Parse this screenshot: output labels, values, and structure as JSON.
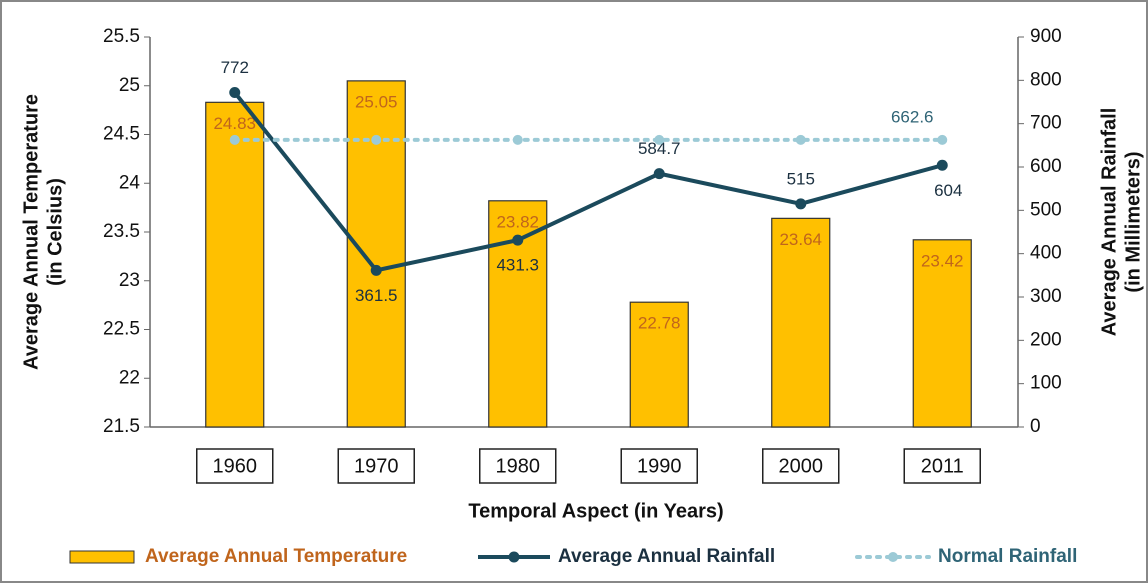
{
  "chart_data": {
    "type": "bar",
    "x_label": "Temporal Aspect (in Years)",
    "y_label": [
      "Average Annual Temperature",
      "(in Celsius)"
    ],
    "y2_label": [
      "Average Annual Rainfall",
      "(in Millimeters)"
    ],
    "categories": [
      "1960",
      "1970",
      "1980",
      "1990",
      "2000",
      "2011"
    ],
    "ylim": [
      21.5,
      25.5
    ],
    "yticks": [
      21.5,
      22,
      22.5,
      23,
      23.5,
      24,
      24.5,
      25,
      25.5
    ],
    "y2lim": [
      0,
      900
    ],
    "y2ticks": [
      0,
      100,
      200,
      300,
      400,
      500,
      600,
      700,
      800,
      900
    ],
    "series": [
      {
        "name": "Average Annual Temperature",
        "type": "bar",
        "color": "#FFC000",
        "label_color": "#C0651C",
        "values": [
          24.83,
          25.05,
          23.82,
          22.78,
          23.64,
          23.42
        ]
      },
      {
        "name": "Average Annual Rainfall",
        "type": "line",
        "axis": "y2",
        "color": "#1B4A5C",
        "label_color": "#1B3040",
        "values": [
          772,
          361.5,
          431.3,
          584.7,
          515,
          604
        ]
      },
      {
        "name": "Normal Rainfall",
        "type": "dotted",
        "axis": "y2",
        "color": "#9CCAD6",
        "label_color": "#2F6476",
        "values": [
          662.6,
          662.6,
          662.6,
          662.6,
          662.6,
          662.6
        ]
      }
    ]
  }
}
